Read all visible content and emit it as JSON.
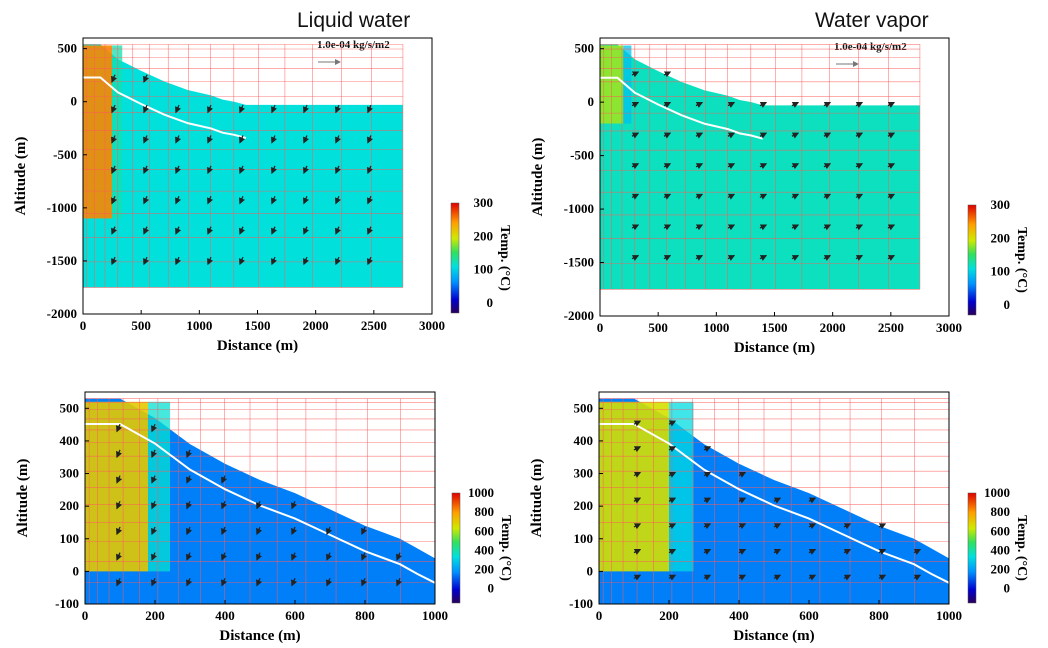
{
  "chart_data": [
    {
      "type": "heatmap",
      "title": "Liquid water",
      "annotation": "1.0e-04 kg/s/m2",
      "xlabel": "Distance (m)",
      "ylabel": "Altitude (m)",
      "xlim": [
        0,
        3000
      ],
      "ylim": [
        -2000,
        600
      ],
      "xticks": [
        0,
        500,
        1000,
        1500,
        2000,
        2500,
        3000
      ],
      "yticks": [
        500,
        0,
        -500,
        -1000,
        -1500,
        -2000
      ],
      "colorbar": {
        "label": "Temp. (°C)",
        "range": [
          -30,
          300
        ],
        "ticks": [
          300,
          200,
          100,
          0
        ]
      },
      "surface_profile": {
        "x": [
          0,
          150,
          300,
          500,
          700,
          900,
          1100,
          1200,
          1300,
          1400
        ],
        "y": [
          540,
          540,
          400,
          290,
          190,
          110,
          60,
          20,
          0,
          -30
        ]
      },
      "domain_extent": {
        "x": [
          0,
          2750
        ],
        "y": [
          -1750,
          540
        ]
      },
      "hot_zone": {
        "x": [
          0,
          250
        ],
        "y": [
          -1100,
          530
        ],
        "temperature": 250
      },
      "background_temperature": {
        "top": 110,
        "bottom": 80
      }
    },
    {
      "type": "heatmap",
      "title": "Water vapor",
      "annotation": "1.0e-04 kg/s/m2",
      "xlabel": "Distance (m)",
      "ylabel": "Altitude (m)",
      "xlim": [
        0,
        3000
      ],
      "ylim": [
        -2000,
        600
      ],
      "xticks": [
        0,
        500,
        1000,
        1500,
        2000,
        2500,
        3000
      ],
      "yticks": [
        500,
        0,
        -500,
        -1000,
        -1500,
        -2000
      ],
      "colorbar": {
        "label": "Temp. (°C)",
        "range": [
          -30,
          300
        ],
        "ticks": [
          300,
          200,
          100,
          0
        ]
      },
      "surface_profile": {
        "x": [
          0,
          150,
          300,
          500,
          700,
          900,
          1100,
          1200,
          1300,
          1400
        ],
        "y": [
          540,
          540,
          400,
          290,
          190,
          110,
          60,
          20,
          0,
          -30
        ]
      },
      "domain_extent": {
        "x": [
          0,
          2750
        ],
        "y": [
          -1750,
          540
        ]
      },
      "hot_zone": {
        "x": [
          0,
          200
        ],
        "y": [
          -200,
          530
        ],
        "temperature": 180
      },
      "background_temperature": {
        "top": 120,
        "bottom": 80
      }
    },
    {
      "type": "heatmap",
      "title": "",
      "xlabel": "Distance (m)",
      "ylabel": "Altitude (m)",
      "xlim": [
        0,
        1000
      ],
      "ylim": [
        -100,
        550
      ],
      "xticks": [
        0,
        200,
        400,
        600,
        800,
        1000
      ],
      "yticks": [
        500,
        400,
        300,
        200,
        100,
        0,
        -100
      ],
      "colorbar": {
        "label": "Temp. (°C)",
        "range": [
          -150,
          1000
        ],
        "ticks": [
          1000,
          800,
          600,
          400,
          200,
          0
        ]
      },
      "surface_profile": {
        "x": [
          0,
          100,
          200,
          300,
          400,
          500,
          600,
          700,
          800,
          900,
          950,
          1000
        ],
        "y": [
          530,
          530,
          470,
          390,
          330,
          280,
          240,
          190,
          140,
          100,
          70,
          40
        ]
      },
      "hot_zone": {
        "x": [
          0,
          180
        ],
        "y": [
          0,
          520
        ],
        "temperature": 700
      },
      "background_temperature": {
        "top": 150,
        "bottom": 150
      }
    },
    {
      "type": "heatmap",
      "title": "",
      "xlabel": "Distance (m)",
      "ylabel": "Altitude (m)",
      "xlim": [
        0,
        1000
      ],
      "ylim": [
        -100,
        550
      ],
      "xticks": [
        0,
        200,
        400,
        600,
        800,
        1000
      ],
      "yticks": [
        500,
        400,
        300,
        200,
        100,
        0,
        -100
      ],
      "colorbar": {
        "label": "Temp. (°C)",
        "range": [
          -150,
          1000
        ],
        "ticks": [
          1000,
          800,
          600,
          400,
          200,
          0
        ]
      },
      "surface_profile": {
        "x": [
          0,
          100,
          200,
          300,
          400,
          500,
          600,
          700,
          800,
          900,
          950,
          1000
        ],
        "y": [
          530,
          530,
          470,
          390,
          330,
          280,
          240,
          190,
          140,
          100,
          70,
          40
        ]
      },
      "hot_zone": {
        "x": [
          0,
          200
        ],
        "y": [
          0,
          520
        ],
        "temperature": 650
      },
      "background_temperature": {
        "top": 150,
        "bottom": 150
      }
    }
  ]
}
